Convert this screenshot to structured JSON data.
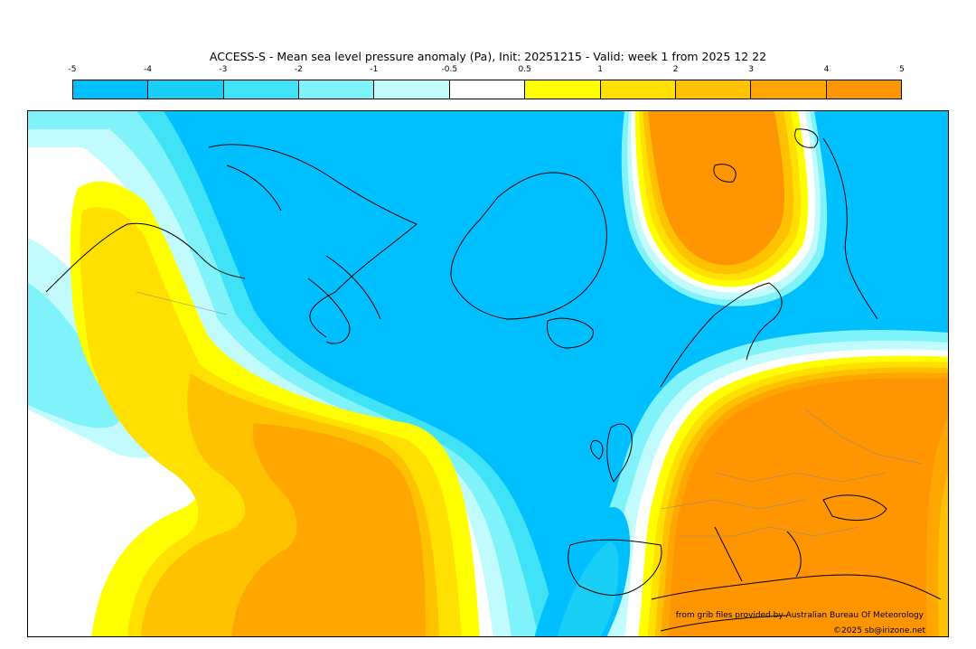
{
  "title": "ACCESS-S - Mean sea level pressure anomaly (Pa), Init: 20251215 - Valid: week 1 from 2025 12 22",
  "colorbar": {
    "ticks": [
      "-5",
      "-4",
      "-3",
      "-2",
      "-1",
      "-0.5",
      "0.5",
      "1",
      "2",
      "3",
      "4",
      "5"
    ],
    "colors": [
      "#00bfff",
      "#19cff5",
      "#3fe3f5",
      "#80f2fa",
      "#c2fbfd",
      "#ffffff",
      "#ffff00",
      "#ffe000",
      "#ffc200",
      "#ffa600",
      "#ff9500"
    ]
  },
  "palette": {
    "neg5": "#00bfff",
    "neg4": "#19cff5",
    "neg3": "#3fe3f5",
    "neg2": "#80f2fa",
    "neg1": "#c2fbfd",
    "zero": "#ffffff",
    "pos05": "#ffff00",
    "pos1": "#ffe000",
    "pos2": "#ffc200",
    "pos3": "#ffa600",
    "pos4": "#ff9500",
    "coast": "#000000",
    "border": "#8a8a8a"
  },
  "credits": {
    "line1": "from grib files provided by Australian Bureau Of Meteorology",
    "line2": "©2025 sb@irizone.net"
  }
}
